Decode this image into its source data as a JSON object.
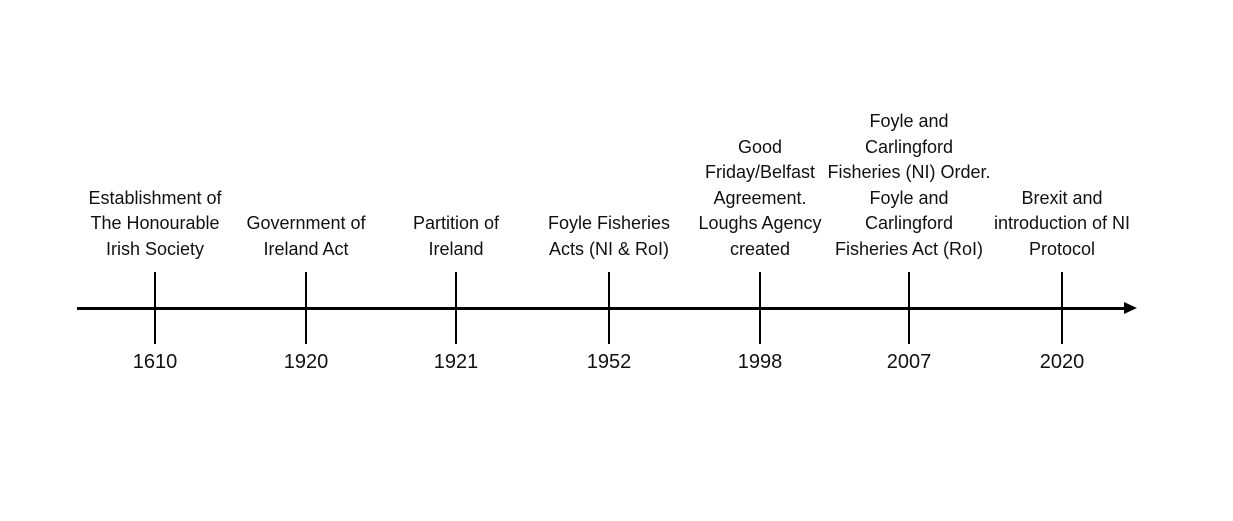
{
  "events": [
    {
      "year": "1610",
      "lines": [
        "Establishment of",
        "The Honourable",
        "Irish Society"
      ]
    },
    {
      "year": "1920",
      "lines": [
        "Government of",
        "Ireland Act"
      ]
    },
    {
      "year": "1921",
      "lines": [
        "Partition of",
        "Ireland"
      ]
    },
    {
      "year": "1952",
      "lines": [
        "Foyle Fisheries",
        "Acts (NI & RoI)"
      ]
    },
    {
      "year": "1998",
      "lines": [
        "Good",
        "Friday/Belfast",
        "Agreement.",
        "Loughs Agency",
        "created"
      ]
    },
    {
      "year": "2007",
      "lines": [
        "Foyle and",
        "Carlingford",
        "Fisheries (NI) Order.",
        "Foyle and",
        "Carlingford",
        "Fisheries Act (RoI)"
      ]
    },
    {
      "year": "2020",
      "lines": [
        "Brexit and",
        "introduction of NI",
        "Protocol"
      ]
    }
  ]
}
